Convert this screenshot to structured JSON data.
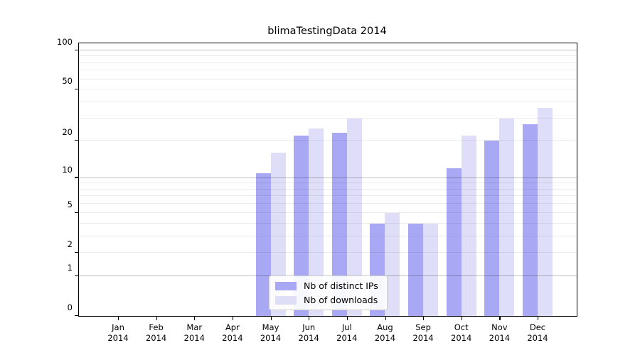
{
  "chart_data": {
    "type": "bar",
    "title": "blimaTestingData 2014",
    "categories": [
      "Jan 2014",
      "Feb 2014",
      "Mar 2014",
      "Apr 2014",
      "May 2014",
      "Jun 2014",
      "Jul 2014",
      "Aug 2014",
      "Sep 2014",
      "Oct 2014",
      "Nov 2014",
      "Dec 2014"
    ],
    "series": [
      {
        "name": "Nb of distinct IPs",
        "color": "#a8a8f5",
        "values": [
          0,
          0,
          0,
          0,
          11,
          22,
          23,
          4,
          4,
          12,
          20,
          27
        ]
      },
      {
        "name": "Nb of downloads",
        "color": "#dedef8",
        "values": [
          0,
          0,
          0,
          0,
          16,
          25,
          30,
          5,
          4,
          22,
          30,
          36
        ]
      }
    ],
    "xlabel": "",
    "ylabel": "",
    "y_scale": "log1p",
    "ylim": [
      0,
      113
    ],
    "y_ticks": [
      0,
      1,
      2,
      5,
      10,
      20,
      50,
      100
    ],
    "major_gridlines": [
      1,
      10,
      100
    ],
    "minor_gridlines": [
      2,
      3,
      4,
      5,
      6,
      7,
      8,
      9,
      20,
      30,
      40,
      50,
      60,
      70,
      80,
      90
    ],
    "grid": "horizontal, drawn over bars",
    "legend_position": "lower center"
  },
  "colors": {
    "background": "#ffffff",
    "axis": "#000000",
    "text": "#000000",
    "major_grid": "#c3c3c3",
    "minor_grid": "#ececec",
    "legend_border": "#cccccc"
  }
}
